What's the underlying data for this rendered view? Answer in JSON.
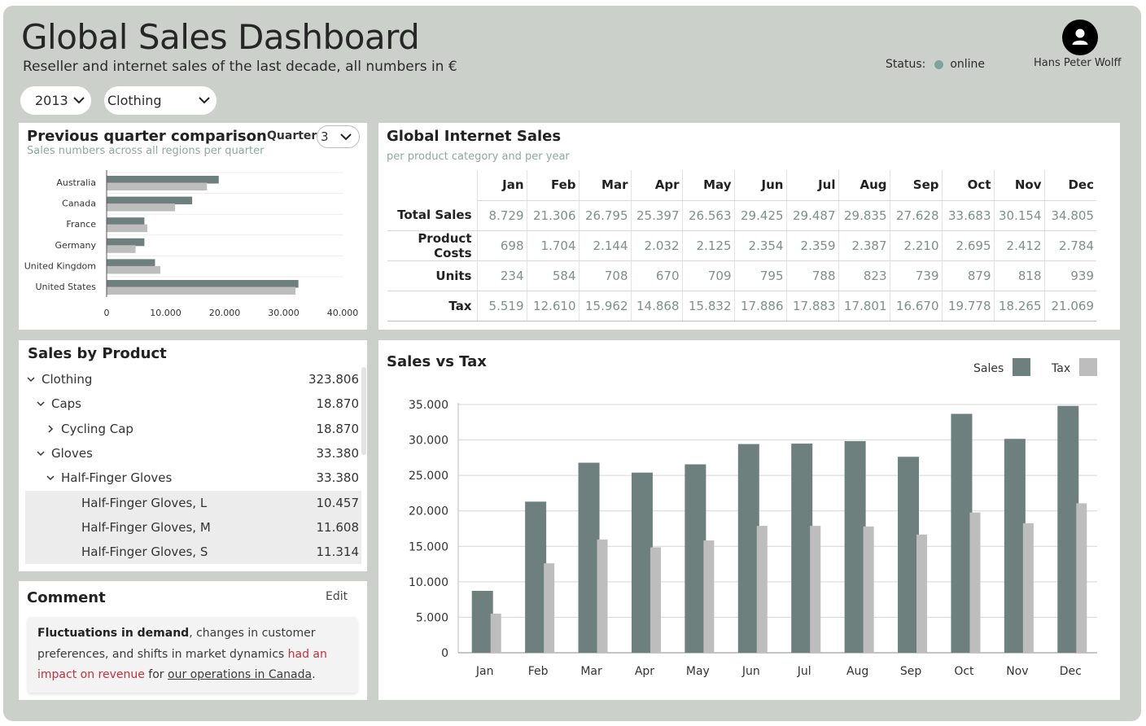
{
  "header": {
    "title": "Global Sales Dashboard",
    "subtitle": "Reseller and internet sales of the last decade, all numbers in €",
    "status_label": "Status:",
    "status_value": "online",
    "status_color": "#7fa39a",
    "user_name": "Hans Peter Wolff",
    "avatar_icon": "user-icon"
  },
  "filters": {
    "year": "2013",
    "category": "Clothing"
  },
  "quarter_card": {
    "title": "Previous quarter comparison",
    "subtitle": "Sales numbers across all regions per quarter",
    "quarter_label": "Quarter",
    "quarter_value": "3"
  },
  "internet_sales": {
    "title": "Global Internet Sales",
    "subtitle": "per product category and per year",
    "months": [
      "Jan",
      "Feb",
      "Mar",
      "Apr",
      "May",
      "Jun",
      "Jul",
      "Aug",
      "Sep",
      "Oct",
      "Nov",
      "Dec"
    ],
    "rows": [
      {
        "label": "Total Sales",
        "values": [
          "8.729",
          "21.306",
          "26.795",
          "25.397",
          "26.563",
          "29.425",
          "29.487",
          "29.835",
          "27.628",
          "33.683",
          "30.154",
          "34.805"
        ]
      },
      {
        "label": "Product Costs",
        "values": [
          "698",
          "1.704",
          "2.144",
          "2.032",
          "2.125",
          "2.354",
          "2.359",
          "2.387",
          "2.210",
          "2.695",
          "2.412",
          "2.784"
        ]
      },
      {
        "label": "Units",
        "values": [
          "234",
          "584",
          "708",
          "670",
          "709",
          "795",
          "788",
          "823",
          "739",
          "879",
          "818",
          "939"
        ]
      },
      {
        "label": "Tax",
        "values": [
          "5.519",
          "12.610",
          "15.962",
          "14.868",
          "15.832",
          "17.886",
          "17.883",
          "17.801",
          "16.670",
          "19.778",
          "18.265",
          "21.069"
        ]
      }
    ]
  },
  "products": {
    "title": "Sales by Product",
    "items": [
      {
        "label": "Clothing",
        "value": "323.806",
        "caret": "down"
      },
      {
        "label": "Caps",
        "value": "18.870",
        "caret": "down"
      },
      {
        "label": "Cycling Cap",
        "value": "18.870",
        "caret": "right"
      },
      {
        "label": "Gloves",
        "value": "33.380",
        "caret": "down"
      },
      {
        "label": "Half-Finger Gloves",
        "value": "33.380",
        "caret": "down"
      },
      {
        "label": "Half-Finger Gloves, L",
        "value": "10.457",
        "caret": ""
      },
      {
        "label": "Half-Finger Gloves, M",
        "value": "11.608",
        "caret": ""
      },
      {
        "label": "Half-Finger Gloves, S",
        "value": "11.314",
        "caret": ""
      }
    ]
  },
  "comment": {
    "title": "Comment",
    "edit_label": "Edit",
    "bold": "Fluctuations in demand",
    "text1": ", changes in customer preferences, and shifts in market dynamics ",
    "red": "had an impact on revenue",
    "text2": " for ",
    "link": "our operations in Canada",
    "text3": "."
  },
  "chart_data": [
    {
      "type": "bar",
      "orientation": "horizontal",
      "categories": [
        "Australia",
        "Canada",
        "France",
        "Germany",
        "United Kingdom",
        "United States"
      ],
      "series": [
        {
          "values": [
            19000,
            14500,
            6400,
            6400,
            8200,
            32500
          ],
          "color": "#6e807d"
        },
        {
          "values": [
            17000,
            11600,
            6900,
            4900,
            9100,
            32000
          ],
          "color": "#bdbdbd"
        }
      ],
      "xlim": [
        0,
        40000
      ],
      "xticks": [
        "0",
        "10.000",
        "20.000",
        "30.000",
        "40.000"
      ],
      "grid": true
    },
    {
      "type": "bar",
      "title": "Sales vs Tax",
      "categories": [
        "Jan",
        "Feb",
        "Mar",
        "Apr",
        "May",
        "Jun",
        "Jul",
        "Aug",
        "Sep",
        "Oct",
        "Nov",
        "Dec"
      ],
      "series": [
        {
          "name": "Sales",
          "color": "#6e807d",
          "values": [
            8729,
            21306,
            26795,
            25397,
            26563,
            29425,
            29487,
            29835,
            27628,
            33683,
            30154,
            34805
          ]
        },
        {
          "name": "Tax",
          "color": "#bdbdbd",
          "values": [
            5519,
            12610,
            15962,
            14868,
            15832,
            17886,
            17883,
            17801,
            16670,
            19778,
            18265,
            21069
          ]
        }
      ],
      "ylim": [
        0,
        35000
      ],
      "yticks": [
        "0",
        "5.000",
        "10.000",
        "15.000",
        "20.000",
        "25.000",
        "30.000",
        "35.000"
      ],
      "legend": "top-right",
      "grid": true
    }
  ]
}
